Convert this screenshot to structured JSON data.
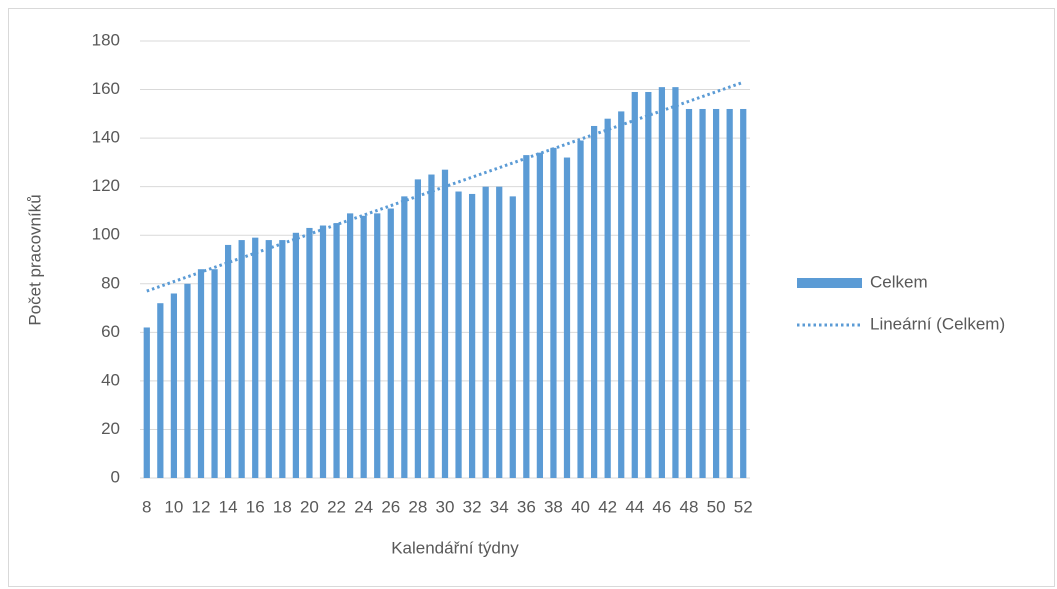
{
  "chart_data": {
    "type": "bar",
    "x_label": "Kalendářní týdny",
    "y_label": "Počet pracovníků",
    "categories": [
      "8",
      null,
      "10",
      null,
      "12",
      null,
      "14",
      null,
      "16",
      null,
      "18",
      null,
      "20",
      null,
      "22",
      null,
      "24",
      null,
      "26",
      null,
      "28",
      null,
      "30",
      null,
      "32",
      null,
      "34",
      null,
      "36",
      null,
      "38",
      null,
      "40",
      null,
      "42",
      null,
      "44",
      null,
      "46",
      null,
      "48",
      null,
      "50",
      null,
      "52"
    ],
    "series": [
      {
        "name": "Celkem",
        "color": "#5b9bd5",
        "values": [
          62,
          72,
          76,
          80,
          86,
          86,
          96,
          98,
          99,
          98,
          98,
          101,
          103,
          104,
          105,
          109,
          108,
          109,
          111,
          116,
          123,
          125,
          127,
          118,
          117,
          120,
          120,
          116,
          133,
          134,
          136,
          132,
          139,
          145,
          148,
          151,
          159,
          159,
          161,
          161,
          152,
          152,
          152,
          152,
          152
        ]
      }
    ],
    "trendline": {
      "name": "Lineární (Celkem)",
      "color": "#5b9bd5",
      "values": [
        77,
        163
      ]
    },
    "ylim": [
      0,
      180
    ],
    "yticks": [
      0,
      20,
      40,
      60,
      80,
      100,
      120,
      140,
      160,
      180
    ],
    "grid": true,
    "legend": "right"
  }
}
